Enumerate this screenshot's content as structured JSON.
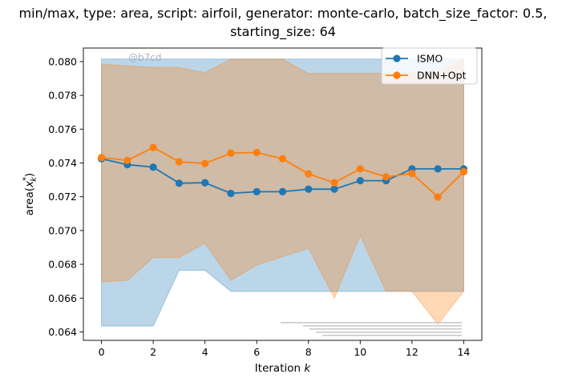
{
  "chart_data": {
    "type": "line",
    "title_line1": "min/max, type: area, script: airfoil, generator: monte-carlo, batch_size_factor: 0.5,",
    "title_line2": "starting_size: 64",
    "xlabel_prefix": "Iteration ",
    "xlabel_var": "k",
    "ylabel": "area(x*k)",
    "xlim": [
      -0.7,
      14.7
    ],
    "ylim": [
      0.0635,
      0.0808
    ],
    "x_ticks": [
      0,
      2,
      4,
      6,
      8,
      10,
      12,
      14
    ],
    "y_ticks": [
      0.064,
      0.066,
      0.068,
      0.07,
      0.072,
      0.074,
      0.076,
      0.078,
      0.08
    ],
    "x": [
      0,
      1,
      2,
      3,
      4,
      5,
      6,
      7,
      8,
      9,
      10,
      11,
      12,
      13,
      14
    ],
    "legend_position": "top-right",
    "grid": false,
    "watermark": "@b7cd",
    "series": [
      {
        "name": "ISMO",
        "color": "#1f77b4",
        "values": [
          0.07425,
          0.0739,
          0.07375,
          0.0728,
          0.07283,
          0.0722,
          0.0723,
          0.0723,
          0.07245,
          0.07245,
          0.07295,
          0.07295,
          0.07365,
          0.07365,
          0.07365
        ],
        "band_min": [
          0.06435,
          0.06435,
          0.06435,
          0.06765,
          0.06765,
          0.0664,
          0.0664,
          0.0664,
          0.0664,
          0.0664,
          0.0664,
          0.0664,
          0.0664,
          0.0664,
          0.0664
        ],
        "band_max": [
          0.08015,
          0.08015,
          0.08015,
          0.08015,
          0.08015,
          0.08015,
          0.08015,
          0.08015,
          0.08015,
          0.08015,
          0.08015,
          0.08015,
          0.08015,
          0.08015,
          0.08015
        ]
      },
      {
        "name": "DNN+Opt",
        "color": "#ff7f0e",
        "values": [
          0.07432,
          0.07415,
          0.07492,
          0.07407,
          0.07397,
          0.07458,
          0.07462,
          0.07425,
          0.07335,
          0.07283,
          0.07365,
          0.07318,
          0.07338,
          0.07198,
          0.07348
        ],
        "band_min": [
          0.06695,
          0.06705,
          0.0684,
          0.0684,
          0.06925,
          0.06705,
          0.06795,
          0.06845,
          0.06895,
          0.066,
          0.0697,
          0.0664,
          0.0664,
          0.06445,
          0.0664
        ],
        "band_max": [
          0.07985,
          0.07975,
          0.07965,
          0.07965,
          0.07935,
          0.08015,
          0.08015,
          0.08015,
          0.0793,
          0.0793,
          0.0793,
          0.0793,
          0.0793,
          0.0793,
          0.08015
        ]
      }
    ]
  }
}
